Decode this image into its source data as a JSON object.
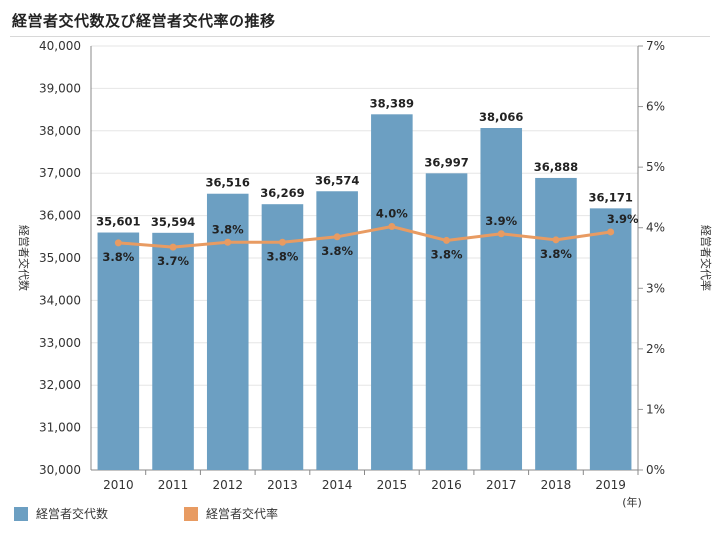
{
  "title": "経営者交代数及び経営者交代率の推移",
  "chart_data": {
    "type": "bar",
    "categories": [
      "2010",
      "2011",
      "2012",
      "2013",
      "2014",
      "2015",
      "2016",
      "2017",
      "2018",
      "2019"
    ],
    "xunit": "(年)",
    "series": [
      {
        "name": "経営者交代数",
        "type": "bar",
        "axis": "left",
        "color": "#6c9fc2",
        "values": [
          35601,
          35594,
          36516,
          36269,
          36574,
          38389,
          36997,
          38066,
          36888,
          36171
        ],
        "labels": [
          "35,601",
          "35,594",
          "36,516",
          "36,269",
          "36,574",
          "38,389",
          "36,997",
          "38,066",
          "36,888",
          "36,171"
        ]
      },
      {
        "name": "経営者交代率",
        "type": "line",
        "axis": "right",
        "color": "#e89b62",
        "values": [
          3.75,
          3.68,
          3.76,
          3.76,
          3.85,
          4.02,
          3.79,
          3.9,
          3.8,
          3.93
        ],
        "labels": [
          "3.8%",
          "3.7%",
          "3.8%",
          "3.8%",
          "3.8%",
          "4.0%",
          "3.8%",
          "3.9%",
          "3.8%",
          "3.9%"
        ]
      }
    ],
    "ylabel_left": "経営者交代数",
    "ylabel_right": "経営者交代率",
    "ylim_left": [
      30000,
      40000
    ],
    "ylim_right": [
      0,
      7
    ],
    "yticks_left": [
      "30,000",
      "31,000",
      "32,000",
      "33,000",
      "34,000",
      "35,000",
      "36,000",
      "37,000",
      "38,000",
      "39,000",
      "40,000"
    ],
    "yticks_right": [
      "0%",
      "1%",
      "2%",
      "3%",
      "4%",
      "5%",
      "6%",
      "7%"
    ],
    "grid": true,
    "legend": "bottom-left"
  }
}
